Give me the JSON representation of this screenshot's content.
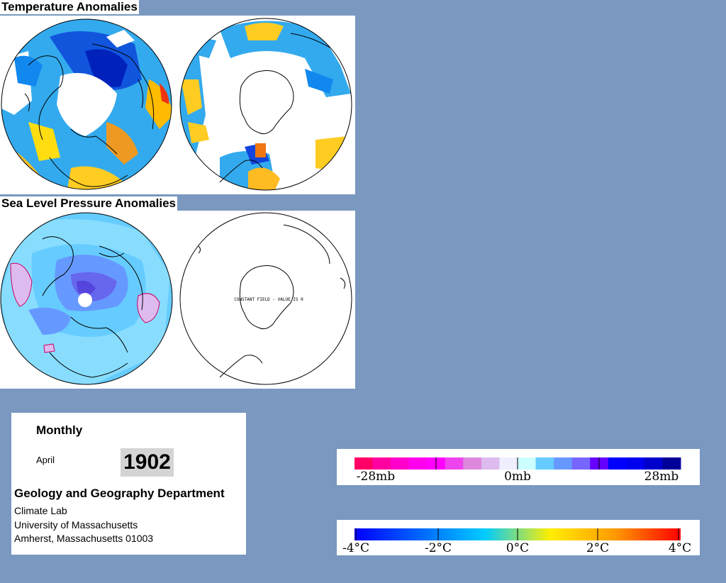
{
  "titles": {
    "temperature": "Temperature Anomalies",
    "pressure": "Sea Level Pressure Anomalies"
  },
  "maps": {
    "slp_south_note": "CONSTANT FIELD - VALUE IS 0"
  },
  "info": {
    "period": "Monthly",
    "month": "April",
    "year": "1902",
    "department": "Geology and Geography Department",
    "line1": "Climate Lab",
    "line2": "University of Massachusetts",
    "line3": "Amherst, Massachusetts 01003"
  },
  "pressure_legend": {
    "labels": [
      "-28mb",
      "0mb",
      "28mb"
    ],
    "colors": [
      "#ff0066",
      "#ff00a0",
      "#ff00cc",
      "#ff00ee",
      "#ff00ff",
      "#ee44ee",
      "#dd88dd",
      "#ddbbee",
      "#eeeeff",
      "#ccffff",
      "#66ccff",
      "#6699ff",
      "#7766ff",
      "#6600ff",
      "#0000ff",
      "#0000ee",
      "#0000cc",
      "#000099"
    ]
  },
  "temperature_legend": {
    "labels": [
      "-4°C",
      "-2°C",
      "0°C",
      "2°C",
      "4°C"
    ],
    "colors": [
      "#0000ff",
      "#0066ff",
      "#00ccff",
      "#ffee00",
      "#ff9900",
      "#ff0000"
    ]
  }
}
